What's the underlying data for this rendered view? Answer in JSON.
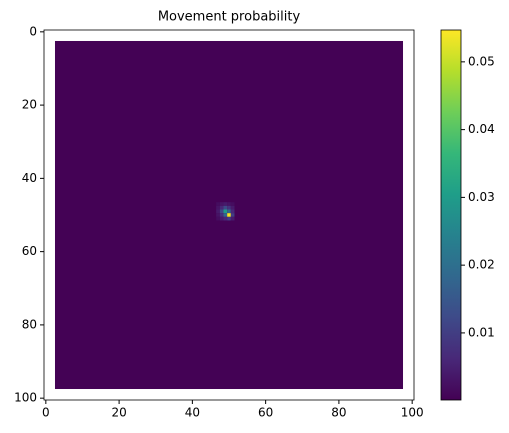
{
  "chart_data": {
    "type": "heatmap",
    "title": "Movement probability",
    "colormap": "viridis",
    "xlim": [
      -0.5,
      100.5
    ],
    "ylim": [
      100.5,
      -0.5
    ],
    "xticks": [
      0,
      20,
      40,
      60,
      80,
      100
    ],
    "yticks": [
      0,
      20,
      40,
      60,
      80,
      100
    ],
    "field": {
      "xlim": [
        2.5,
        97.5
      ],
      "ylim": [
        2.5,
        97.5
      ],
      "value": 0.0003
    },
    "x": [
      47,
      48,
      49,
      50,
      51
    ],
    "y": [
      47,
      48,
      49,
      50,
      51
    ],
    "values": [
      [
        0.002,
        0.003,
        0.004,
        0.003,
        0.002
      ],
      [
        0.003,
        0.006,
        0.012,
        0.008,
        0.004
      ],
      [
        0.004,
        0.012,
        0.03,
        0.018,
        0.006
      ],
      [
        0.003,
        0.008,
        0.018,
        0.054,
        0.01
      ],
      [
        0.002,
        0.004,
        0.006,
        0.01,
        0.004
      ]
    ],
    "clim": [
      0.0001,
      0.0547
    ],
    "cticks": [
      0.01,
      0.02,
      0.03,
      0.04,
      0.05
    ]
  }
}
